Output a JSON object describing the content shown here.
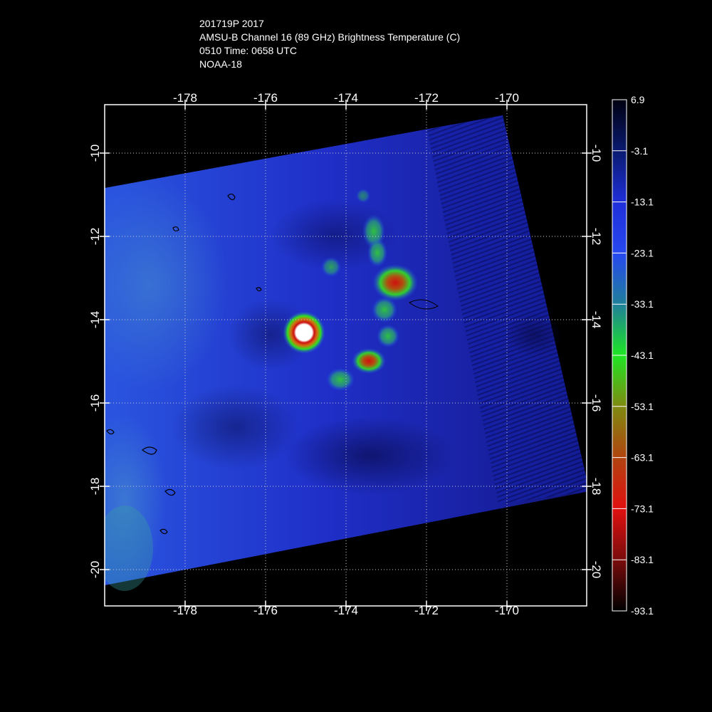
{
  "header": {
    "line1": "201719P 2017",
    "line2": "AMSU-B Channel 16 (89 GHz) Brightness Temperature (C)",
    "line3": "0510 Time: 0658 UTC",
    "line4": "NOAA-18"
  },
  "map": {
    "lon_range": [
      -180,
      -168
    ],
    "lat_range": [
      -21,
      -9
    ],
    "lon_ticks": [
      "-178",
      "-176",
      "-174",
      "-172",
      "-170"
    ],
    "lat_ticks": [
      "-10",
      "-12",
      "-14",
      "-16",
      "-18",
      "-20"
    ],
    "lon_tick_values": [
      -178,
      -176,
      -174,
      -172,
      -170
    ],
    "lat_tick_values": [
      -10,
      -12,
      -14,
      -16,
      -18,
      -20
    ],
    "grid": true,
    "storm_center": {
      "lon": -175.1,
      "lat": -14.3
    }
  },
  "colorbar": {
    "ticks": [
      "6.9",
      "-3.1",
      "-13.1",
      "-23.1",
      "-33.1",
      "-43.1",
      "-53.1",
      "-63.1",
      "-73.1",
      "-83.1",
      "-93.1"
    ],
    "tick_values": [
      6.9,
      -3.1,
      -13.1,
      -23.1,
      -33.1,
      -43.1,
      -53.1,
      -63.1,
      -73.1,
      -83.1,
      -93.1
    ],
    "colors": [
      "#000010",
      "#0a1a70",
      "#1f2fd8",
      "#2748f0",
      "#1f7f9a",
      "#1ee624",
      "#7f8a10",
      "#b04410",
      "#e01010",
      "#7a0c0c",
      "#000000"
    ]
  }
}
